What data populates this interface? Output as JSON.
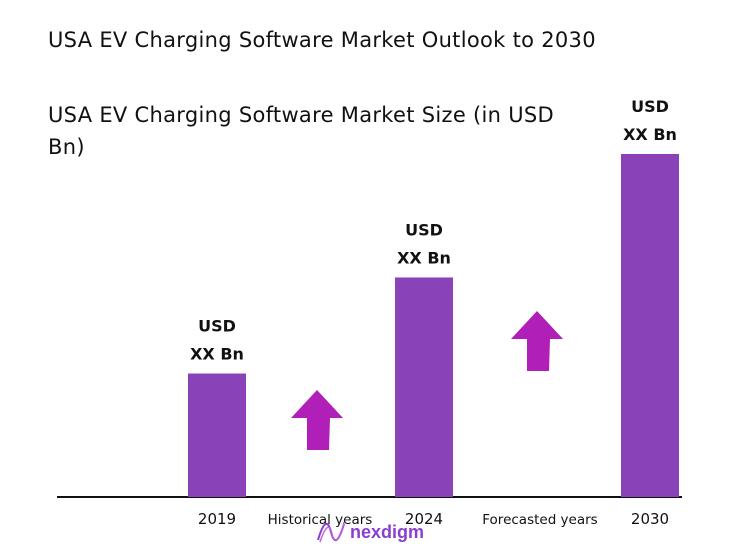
{
  "chart_data": {
    "type": "bar",
    "title": "USA EV Charging Software Market Outlook to 2030",
    "subtitle": " USA EV Charging Software Market Size (in USD Bn)",
    "categories": [
      "2019",
      "2024",
      "2030"
    ],
    "values_relative": [
      36,
      64,
      100
    ],
    "data_labels": [
      [
        "USD",
        "XX Bn"
      ],
      [
        "USD",
        "XX Bn"
      ],
      [
        "USD",
        "XX Bn"
      ]
    ],
    "period_labels": [
      "Historical years",
      "Forecasted years"
    ],
    "grid": false,
    "legend": "none",
    "colors": {
      "bar": "#8a42b8",
      "arrow": "#b01fb8",
      "axis": "#111111"
    }
  },
  "logo": {
    "text": "nexdigm",
    "color": "#8a3fd0"
  }
}
